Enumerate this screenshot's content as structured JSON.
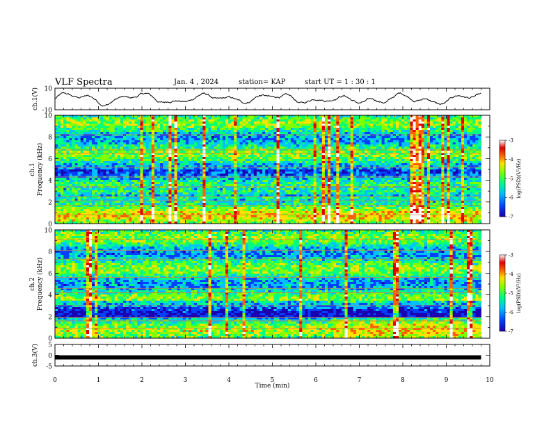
{
  "header": {
    "title": "VLF Spectra",
    "date": "Jan. 4 , 2024",
    "station": "station= KAP",
    "start": "start UT = 1 : 30 : 1"
  },
  "colors": {
    "colormap": [
      "#1a00b0",
      "#0040ff",
      "#00c0ff",
      "#00ff80",
      "#80ff00",
      "#ffe000",
      "#ff6000",
      "#e00000",
      "#ffffff"
    ]
  },
  "chart_data": [
    {
      "type": "line",
      "name": "ch1-waveform",
      "ylabel": "ch.1(V)",
      "ylim": [
        -10,
        10
      ],
      "yticks": [
        -10,
        10
      ],
      "xlim": [
        0,
        10
      ],
      "x_end": 9.8,
      "description_values": "noisy waveform oscillating roughly between -7 and 7 V",
      "y_range_observed": [
        -7,
        7
      ]
    },
    {
      "type": "heatmap",
      "name": "ch1-spectrogram",
      "ylabel": "ch.1\nFrequency (kHz)",
      "ylim": [
        0,
        10
      ],
      "yticks": [
        0,
        2,
        4,
        6,
        8,
        10
      ],
      "xlim": [
        0,
        10
      ],
      "x_end": 9.8,
      "colorbar": {
        "label": "log(PSD)(V²/Hz)",
        "range": [
          -7,
          -3
        ],
        "ticks": [
          -7,
          -6,
          -5,
          -4,
          -3
        ]
      }
    },
    {
      "type": "heatmap",
      "name": "ch2-spectrogram",
      "ylabel": "ch.2\nFrequency (kHz)",
      "ylim": [
        0,
        10
      ],
      "yticks": [
        0,
        2,
        4,
        6,
        8,
        10
      ],
      "xlim": [
        0,
        10
      ],
      "x_end": 9.8,
      "colorbar": {
        "label": "log(PSD)(V²/Hz)",
        "range": [
          -7,
          -3
        ],
        "ticks": [
          -7,
          -6,
          -5,
          -4,
          -3
        ]
      }
    },
    {
      "type": "line",
      "name": "ch3-waveform",
      "ylabel": "ch.3(V)",
      "ylim": [
        -5,
        5
      ],
      "yticks": [
        -5,
        0,
        5
      ],
      "xlim": [
        0,
        10
      ],
      "x_end": 9.8,
      "constant_value": -1
    }
  ],
  "xaxis": {
    "label": "Time (min)",
    "ticks": [
      0,
      1,
      2,
      3,
      4,
      5,
      6,
      7,
      8,
      9,
      10
    ]
  }
}
